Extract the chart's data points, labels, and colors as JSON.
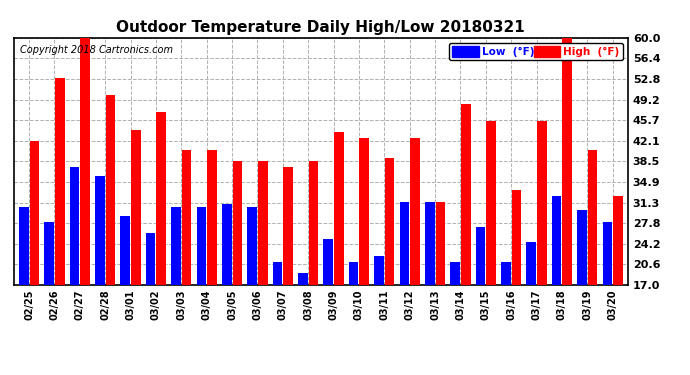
{
  "title": "Outdoor Temperature Daily High/Low 20180321",
  "copyright": "Copyright 2018 Cartronics.com",
  "dates": [
    "02/25",
    "02/26",
    "02/27",
    "02/28",
    "03/01",
    "03/02",
    "03/03",
    "03/04",
    "03/05",
    "03/06",
    "03/07",
    "03/08",
    "03/09",
    "03/10",
    "03/11",
    "03/12",
    "03/13",
    "03/14",
    "03/15",
    "03/16",
    "03/17",
    "03/18",
    "03/19",
    "03/20"
  ],
  "high": [
    42.1,
    53.0,
    61.0,
    50.0,
    44.0,
    47.0,
    40.5,
    40.5,
    38.5,
    38.5,
    37.5,
    38.5,
    43.5,
    42.5,
    39.0,
    42.5,
    31.5,
    48.5,
    45.5,
    33.5,
    45.5,
    60.0,
    40.5,
    32.5
  ],
  "low": [
    30.5,
    28.0,
    37.5,
    36.0,
    29.0,
    26.0,
    30.5,
    30.5,
    31.0,
    30.5,
    21.0,
    19.0,
    25.0,
    21.0,
    22.0,
    31.5,
    31.5,
    21.0,
    27.0,
    21.0,
    24.5,
    32.5,
    30.0,
    28.0
  ],
  "ylim_min": 17.0,
  "ylim_max": 60.0,
  "yticks": [
    17.0,
    20.6,
    24.2,
    27.8,
    31.3,
    34.9,
    38.5,
    42.1,
    45.7,
    49.2,
    52.8,
    56.4,
    60.0
  ],
  "low_color": "#0000ff",
  "high_color": "#ff0000",
  "bg_color": "#ffffff",
  "border_color": "#000000",
  "grid_color": "#b0b0b0",
  "title_fontsize": 11,
  "copyright_fontsize": 7,
  "legend_low_label": "Low  (°F)",
  "legend_high_label": "High  (°F)"
}
